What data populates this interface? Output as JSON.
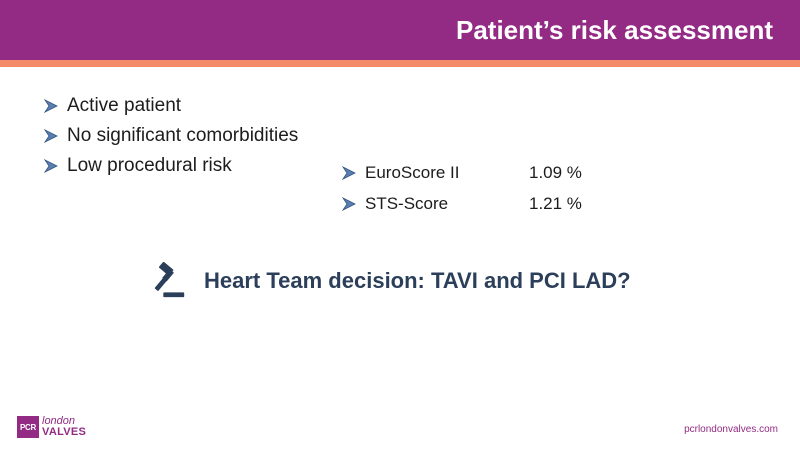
{
  "header": {
    "title": "Patient’s risk assessment"
  },
  "bullets": [
    {
      "label": "Active patient"
    },
    {
      "label": "No significant comorbidities"
    },
    {
      "label": "Low procedural risk"
    }
  ],
  "scores": [
    {
      "name": "EuroScore II",
      "value": "1.09 %"
    },
    {
      "name": "STS-Score",
      "value": "1.21 %"
    }
  ],
  "decision": {
    "text": "Heart Team decision:  TAVI and PCI LAD?",
    "icon": "gavel-icon"
  },
  "footer": {
    "logo": {
      "badge": "PCR",
      "line1": "london",
      "line2": "VALVES"
    },
    "website": "pcrlondonvalves.com"
  },
  "colors": {
    "header": "#932b84",
    "stripe": "#f48a67",
    "decision_text": "#2c3f5a",
    "bullet_arrow": "#5a7fb1"
  }
}
